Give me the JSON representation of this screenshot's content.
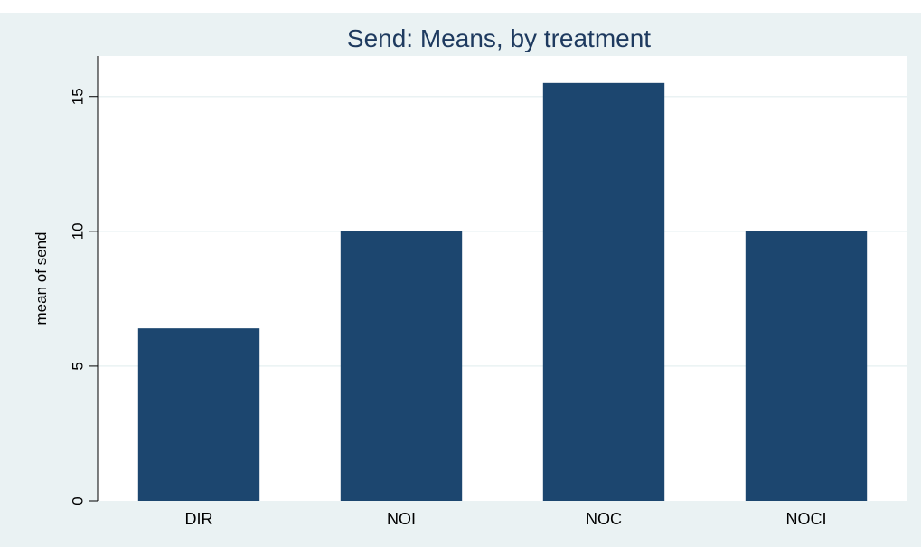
{
  "chart_data": {
    "type": "bar",
    "title": "Send: Means, by treatment",
    "xlabel": "",
    "ylabel": "mean of send",
    "categories": [
      "DIR",
      "NOI",
      "NOC",
      "NOCI"
    ],
    "values": [
      6.4,
      10.0,
      15.5,
      10.0
    ],
    "ylim": [
      0,
      16.5
    ],
    "yticks": [
      0,
      5,
      10,
      15
    ],
    "grid": true,
    "colors": {
      "bar": "#1c466f",
      "outer_background": "#eaf2f3",
      "plot_background": "#ffffff",
      "gridline": "#eaf2f3",
      "title": "#1e3a5f"
    }
  }
}
